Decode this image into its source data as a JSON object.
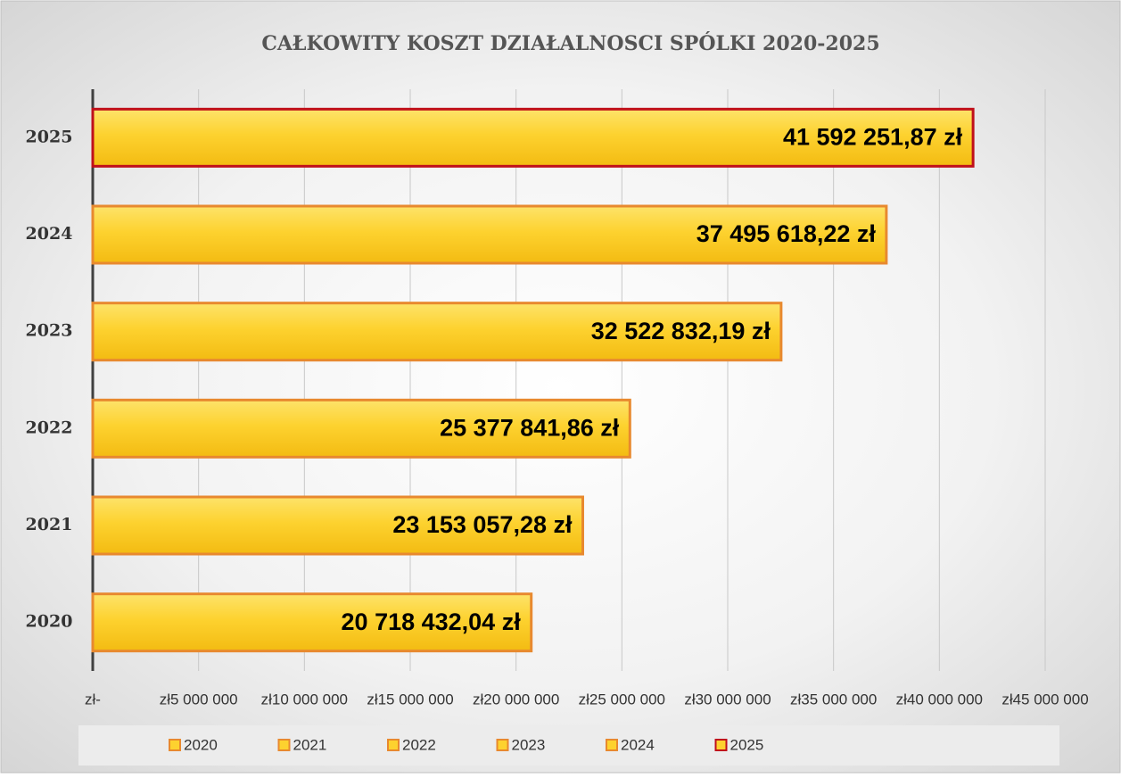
{
  "chart_data": {
    "type": "barh",
    "title": "CAŁKOWITY  KOSZT DZIAŁALNOSCI SPÓLKI  2020-2025",
    "categories": [
      "2020",
      "2021",
      "2022",
      "2023",
      "2024",
      "2025"
    ],
    "values": [
      20718432.04,
      23153057.28,
      25377841.86,
      32522832.19,
      37495618.22,
      41592251.87
    ],
    "value_labels": [
      "20 718 432,04 zł",
      "23 153 057,28 zł",
      "25 377 841,86 zł",
      "32 522 832,19 zł",
      "37 495 618,22 zł",
      "41 592 251,87 zł"
    ],
    "color": "#fdd22f",
    "edge_colors": [
      "#e8892f",
      "#e8892f",
      "#e8892f",
      "#e8892f",
      "#e8892f",
      "#c0101a"
    ],
    "xlim": [
      0,
      45000000
    ],
    "xticks": [
      {
        "value": 0,
        "label": "zł-"
      },
      {
        "value": 5000000,
        "label": "zł5 000 000"
      },
      {
        "value": 10000000,
        "label": "zł10 000 000"
      },
      {
        "value": 15000000,
        "label": "zł15 000 000"
      },
      {
        "value": 20000000,
        "label": "zł20 000 000"
      },
      {
        "value": 25000000,
        "label": "zł25 000 000"
      },
      {
        "value": 30000000,
        "label": "zł30 000 000"
      },
      {
        "value": 35000000,
        "label": "zł35 000 000"
      },
      {
        "value": 40000000,
        "label": "zł40 000 000"
      },
      {
        "value": 45000000,
        "label": "zł45 000 000"
      }
    ],
    "grid": true,
    "legend": "bottom"
  }
}
